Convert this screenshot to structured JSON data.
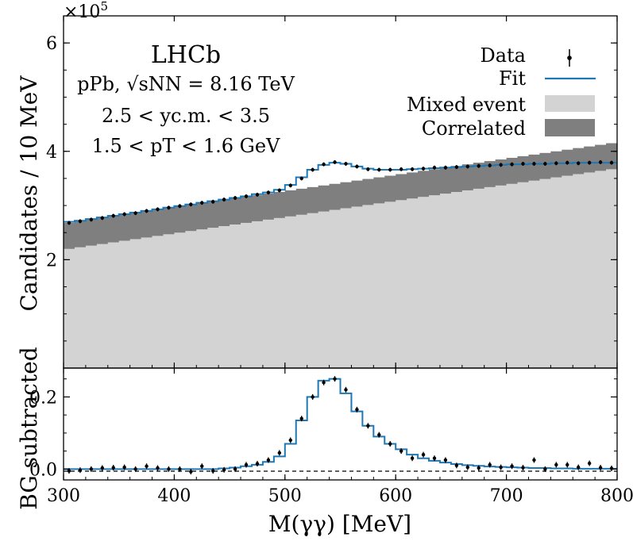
{
  "chart_data": {
    "type": "bar",
    "x_range_label": "M(γγ) [MeV]",
    "xlabel": "M(γγ) [MeV]",
    "xlim": [
      300,
      800
    ],
    "x_ticks": [
      "300",
      "400",
      "500",
      "600",
      "700",
      "800"
    ],
    "top_panel": {
      "ylabel": "Candidates / 10 MeV",
      "ylim": [
        0,
        6.5
      ],
      "y_ticks": [
        "2",
        "4",
        "6"
      ],
      "y_multiplier": "×10",
      "y_multiplier_exp": "5",
      "annotations": {
        "experiment": "LHCb",
        "line1": "pPb, √sNN = 8.16 TeV",
        "line2": "2.5 < yc.m. < 3.5",
        "line3": "1.5 < pT < 1.6 GeV"
      },
      "legend": {
        "position": "top-right",
        "entries": [
          {
            "label": "Data",
            "style": "errorbar"
          },
          {
            "label": "Fit",
            "style": "line",
            "color": "#1f77b4"
          },
          {
            "label": "Mixed event",
            "style": "fill",
            "color": "#d3d3d3"
          },
          {
            "label": "Correlated",
            "style": "fill",
            "color": "#7f7f7f"
          }
        ]
      },
      "series": [
        {
          "name": "Mixed event",
          "values": [
            2.2,
            2.23,
            2.26,
            2.29,
            2.32,
            2.35,
            2.38,
            2.41,
            2.44,
            2.47,
            2.5,
            2.53,
            2.56,
            2.59,
            2.62,
            2.65,
            2.68,
            2.71,
            2.74,
            2.77,
            2.8,
            2.83,
            2.86,
            2.89,
            2.92,
            2.95,
            2.98,
            3.01,
            3.04,
            3.07,
            3.1,
            3.13,
            3.16,
            3.19,
            3.22,
            3.25,
            3.28,
            3.31,
            3.34,
            3.37,
            3.4,
            3.43,
            3.46,
            3.49,
            3.52,
            3.55,
            3.58,
            3.61,
            3.64,
            3.67
          ]
        },
        {
          "name": "Correlated (stacked top)",
          "values": [
            2.68,
            2.71,
            2.74,
            2.77,
            2.8,
            2.83,
            2.86,
            2.89,
            2.92,
            2.95,
            2.98,
            3.01,
            3.04,
            3.07,
            3.1,
            3.13,
            3.16,
            3.19,
            3.22,
            3.25,
            3.28,
            3.31,
            3.34,
            3.37,
            3.4,
            3.43,
            3.46,
            3.49,
            3.52,
            3.55,
            3.58,
            3.61,
            3.64,
            3.67,
            3.7,
            3.73,
            3.76,
            3.79,
            3.82,
            3.85,
            3.88,
            3.91,
            3.94,
            3.97,
            4.0,
            4.03,
            4.06,
            4.09,
            4.12,
            4.15
          ]
        },
        {
          "name": "Fit",
          "values": [
            2.7,
            2.72,
            2.75,
            2.78,
            2.81,
            2.84,
            2.87,
            2.9,
            2.93,
            2.96,
            2.99,
            3.02,
            3.05,
            3.08,
            3.11,
            3.14,
            3.17,
            3.21,
            3.24,
            3.29,
            3.38,
            3.52,
            3.66,
            3.75,
            3.79,
            3.77,
            3.72,
            3.68,
            3.66,
            3.66,
            3.66,
            3.67,
            3.68,
            3.69,
            3.7,
            3.71,
            3.72,
            3.73,
            3.74,
            3.75,
            3.76,
            3.76,
            3.77,
            3.77,
            3.78,
            3.78,
            3.79,
            3.79,
            3.79,
            3.79
          ]
        },
        {
          "name": "Data",
          "values": [
            2.68,
            2.71,
            2.74,
            2.77,
            2.81,
            2.84,
            2.86,
            2.9,
            2.93,
            2.96,
            2.99,
            3.02,
            3.05,
            3.07,
            3.11,
            3.14,
            3.17,
            3.2,
            3.24,
            3.28,
            3.37,
            3.5,
            3.66,
            3.76,
            3.8,
            3.77,
            3.72,
            3.67,
            3.66,
            3.66,
            3.67,
            3.67,
            3.68,
            3.7,
            3.7,
            3.71,
            3.72,
            3.73,
            3.74,
            3.75,
            3.76,
            3.77,
            3.77,
            3.77,
            3.78,
            3.79,
            3.78,
            3.79,
            3.8,
            3.79
          ]
        }
      ]
    },
    "bottom_panel": {
      "ylabel": "BG subtracted",
      "ylim": [
        -0.03,
        0.28
      ],
      "y_ticks": [
        "0.0",
        "0.2"
      ],
      "series": [
        {
          "name": "Fit",
          "values": [
            0.0,
            0.0,
            0.0,
            0.0,
            0.0,
            0.0,
            0.0,
            0.0,
            0.0,
            0.0,
            0.0,
            0.0,
            0.0,
            0.0,
            0.002,
            0.004,
            0.008,
            0.012,
            0.02,
            0.035,
            0.07,
            0.135,
            0.2,
            0.245,
            0.25,
            0.21,
            0.16,
            0.12,
            0.09,
            0.07,
            0.055,
            0.04,
            0.03,
            0.023,
            0.018,
            0.014,
            0.011,
            0.009,
            0.007,
            0.006,
            0.005,
            0.004,
            0.003,
            0.003,
            0.002,
            0.002,
            0.001,
            0.001,
            0.001,
            0.001
          ]
        },
        {
          "name": "Data",
          "values": [
            -0.005,
            -0.003,
            0.0,
            0.003,
            0.004,
            0.005,
            0.0,
            0.008,
            0.003,
            0.0,
            0.0,
            -0.007,
            0.008,
            -0.005,
            -0.002,
            0.0,
            0.012,
            0.015,
            0.025,
            0.045,
            0.08,
            0.14,
            0.2,
            0.24,
            0.25,
            0.22,
            0.165,
            0.12,
            0.095,
            0.07,
            0.05,
            0.03,
            0.04,
            0.03,
            0.025,
            0.01,
            0.005,
            0.003,
            0.012,
            0.005,
            0.008,
            0.004,
            0.025,
            0.0,
            0.012,
            0.012,
            0.005,
            0.016,
            0.004,
            0.002
          ]
        }
      ],
      "reference_line": 0
    }
  }
}
